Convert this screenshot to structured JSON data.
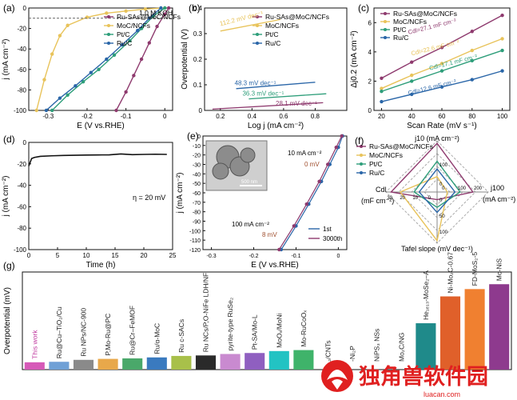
{
  "colors": {
    "ru_sas": "#8e3a6e",
    "moc": "#e8c35a",
    "ptc": "#2e9e7a",
    "ruc": "#2a66a8",
    "axis": "#111111",
    "inset_bg": "#cfcfcf",
    "watermark_red": "#e02020"
  },
  "panels": {
    "a": {
      "tag": "(a)",
      "annot": "1.0 M KOH"
    },
    "b": {
      "tag": "(b)"
    },
    "c": {
      "tag": "(c)"
    },
    "d": {
      "tag": "(d)",
      "annot": "η = 20 mV"
    },
    "e": {
      "tag": "(e)",
      "annot_top": "10 mA cm⁻²",
      "annot_top_val": "0 mV",
      "annot_bot": "100 mA cm⁻²",
      "annot_bot_val": "8 mV",
      "legend1": "1st",
      "legend2": "3000th",
      "scale_bar": "500 nm"
    },
    "f": {
      "tag": "(f)"
    },
    "g": {
      "tag": "(g)"
    }
  },
  "watermark": {
    "text": "独角兽软件园",
    "url": "luacan.com"
  },
  "chart_data": [
    {
      "panel": "a",
      "type": "line",
      "xlabel": "E (V vs.RHE)",
      "ylabel": "j (mA cm⁻²)",
      "xlim": [
        -0.35,
        0.02
      ],
      "ylim": [
        -100,
        0
      ],
      "xticks": [
        -0.3,
        -0.2,
        -0.1,
        0.0
      ],
      "yticks": [
        -100,
        -80,
        -60,
        -40,
        -20,
        0
      ],
      "series": [
        {
          "name": "Ru-SAs@MoC/NCFs",
          "color_key": "ru_sas",
          "x": [
            -0.125,
            -0.1,
            -0.08,
            -0.06,
            -0.04,
            -0.02,
            0.0,
            0.01
          ],
          "y": [
            -100,
            -82,
            -66,
            -50,
            -34,
            -18,
            -6,
            0
          ]
        },
        {
          "name": "MoC/NCFs",
          "color_key": "moc",
          "x": [
            -0.33,
            -0.31,
            -0.29,
            -0.27,
            -0.25,
            -0.2,
            -0.15,
            -0.1,
            -0.05,
            0.0
          ],
          "y": [
            -100,
            -70,
            -45,
            -27,
            -17,
            -9,
            -5,
            -3,
            -1,
            0
          ]
        },
        {
          "name": "Pt/C",
          "color_key": "ptc",
          "x": [
            -0.29,
            -0.25,
            -0.21,
            -0.17,
            -0.13,
            -0.09,
            -0.06,
            -0.03,
            0.0
          ],
          "y": [
            -100,
            -85,
            -72,
            -60,
            -46,
            -32,
            -20,
            -8,
            0
          ]
        },
        {
          "name": "Ru/C",
          "color_key": "ruc",
          "x": [
            -0.305,
            -0.27,
            -0.23,
            -0.19,
            -0.15,
            -0.11,
            -0.07,
            -0.04,
            -0.01
          ],
          "y": [
            -100,
            -88,
            -76,
            -63,
            -50,
            -36,
            -22,
            -10,
            0
          ]
        }
      ]
    },
    {
      "panel": "b",
      "type": "line",
      "xlabel": "Log j (mA cm⁻²)",
      "ylabel": "Overpotential (V)",
      "xlim": [
        0.1,
        1.0
      ],
      "ylim": [
        0.0,
        0.4
      ],
      "xticks": [
        0.2,
        0.4,
        0.6,
        0.8
      ],
      "yticks": [
        0.0,
        0.1,
        0.2,
        0.3,
        0.4
      ],
      "series": [
        {
          "name": "Ru-SAs@MoC/NCFs",
          "color_key": "ru_sas",
          "x": [
            0.15,
            0.85
          ],
          "y": [
            0.005,
            0.03
          ],
          "slope_label": "28.1 mV dec⁻¹"
        },
        {
          "name": "MoC/NCFs",
          "color_key": "moc",
          "x": [
            0.2,
            0.58
          ],
          "y": [
            0.31,
            0.355
          ],
          "slope_label": "112.2 mV dec⁻¹"
        },
        {
          "name": "Pt/C",
          "color_key": "ptc",
          "x": [
            0.38,
            0.87
          ],
          "y": [
            0.045,
            0.065
          ],
          "slope_label": "36.3 mV dec⁻¹"
        },
        {
          "name": "Ru/C",
          "color_key": "ruc",
          "x": [
            0.3,
            0.8
          ],
          "y": [
            0.085,
            0.11
          ],
          "slope_label": "48.3 mV dec⁻¹"
        }
      ]
    },
    {
      "panel": "c",
      "type": "line",
      "xlabel": "Scan Rate (mV s⁻¹)",
      "ylabel": "Δj0.2 (mA cm⁻²)",
      "xlim": [
        15,
        105
      ],
      "ylim": [
        0,
        7
      ],
      "xticks": [
        20,
        40,
        60,
        80,
        100
      ],
      "yticks": [
        0,
        2,
        4,
        6
      ],
      "series": [
        {
          "name": "Ru-SAs@MoC/NCFs",
          "color_key": "ru_sas",
          "x": [
            20,
            40,
            60,
            80,
            100
          ],
          "y": [
            2.2,
            3.3,
            4.3,
            5.4,
            6.5
          ],
          "slope_label": "Cdl=27.1 mF cm⁻²"
        },
        {
          "name": "MoC/NCFs",
          "color_key": "moc",
          "x": [
            20,
            40,
            60,
            80,
            100
          ],
          "y": [
            1.5,
            2.4,
            3.2,
            4.1,
            4.9
          ],
          "slope_label": "Cdl=22.6 mF cm⁻²"
        },
        {
          "name": "Pt/C",
          "color_key": "ptc",
          "x": [
            20,
            40,
            60,
            80,
            100
          ],
          "y": [
            1.3,
            2.0,
            2.7,
            3.4,
            4.1
          ],
          "slope_label": "Cdl=17.1 mF cm⁻²"
        },
        {
          "name": "Ru/C",
          "color_key": "ruc",
          "x": [
            20,
            40,
            60,
            80,
            100
          ],
          "y": [
            0.6,
            1.1,
            1.6,
            2.1,
            2.7
          ],
          "slope_label": "Cdl=12.6 mF cm⁻²"
        }
      ]
    },
    {
      "panel": "d",
      "type": "line",
      "xlabel": "Time (h)",
      "ylabel": "j (mA cm⁻²)",
      "xlim": [
        0,
        25
      ],
      "ylim": [
        -100,
        0
      ],
      "xticks": [
        0,
        5,
        10,
        15,
        20,
        25
      ],
      "yticks": [
        -100,
        -80,
        -60,
        -40,
        -20,
        0
      ],
      "series": [
        {
          "name": "",
          "color_key": "axis",
          "x": [
            0,
            0.5,
            1,
            2,
            4,
            6,
            8,
            10,
            12,
            14,
            16,
            18,
            20,
            22,
            24
          ],
          "y": [
            -22,
            -15,
            -14,
            -13,
            -12.5,
            -12.2,
            -12,
            -11.8,
            -11.7,
            -11.6,
            -10.8,
            -11.4,
            -11.2,
            -11.0,
            -11.2
          ]
        }
      ]
    },
    {
      "panel": "e",
      "type": "line",
      "xlabel": "E (V vs.RHE)",
      "ylabel": "j (mA cm⁻²)",
      "xlim": [
        -0.32,
        0.02
      ],
      "ylim": [
        -120,
        0
      ],
      "xticks": [
        -0.3,
        -0.2,
        -0.1,
        0.0
      ],
      "yticks": [
        -120,
        -110,
        -100,
        -90,
        -80,
        -70,
        -60,
        -50,
        -40,
        -30,
        -20,
        -10,
        0
      ],
      "series": [
        {
          "name": "1st",
          "color_key": "ruc",
          "x": [
            -0.135,
            -0.1,
            -0.07,
            -0.04,
            -0.02,
            0.0,
            0.01
          ],
          "y": [
            -120,
            -95,
            -72,
            -48,
            -30,
            -12,
            0
          ]
        },
        {
          "name": "3000th",
          "color_key": "ru_sas",
          "x": [
            -0.14,
            -0.105,
            -0.075,
            -0.045,
            -0.025,
            -0.005,
            0.008
          ],
          "y": [
            -120,
            -95,
            -72,
            -48,
            -30,
            -12,
            0
          ]
        }
      ]
    },
    {
      "panel": "f",
      "type": "radar",
      "axes": [
        "j10 (mA cm⁻²)",
        "j100 (mA cm⁻²)",
        "Tafel slope (mV dec⁻¹)",
        "Cdl (mF cm⁻²)"
      ],
      "axis_ticks": {
        "j10": [
          "0",
          "100"
        ],
        "j100": [
          "0",
          "100",
          "200"
        ],
        "tafel": [
          "0",
          "50",
          "100"
        ],
        "cdl": [
          "0",
          "10",
          "20",
          "30"
        ]
      },
      "series": [
        {
          "name": "Ru-SAs@MoC/NCFs",
          "color_key": "ru_sas"
        },
        {
          "name": "MoC/NCFs",
          "color_key": "moc"
        },
        {
          "name": "Pt/C",
          "color_key": "ptc"
        },
        {
          "name": "Ru/C",
          "color_key": "ruc"
        }
      ]
    },
    {
      "panel": "g",
      "type": "bar",
      "ylabel": "Overpotential (mV)",
      "categories": [
        "This work",
        "Ru@Cu–TiO₂/Cu",
        "Ru NPs/NC-900",
        "P,Mo-Ru@PC",
        "Ru@Cr–FeMOF",
        "Ru/α-MoC",
        "Ru c-SACs",
        "Ru NCs/P,O-NiFe LDH/NF",
        "pyrite-type RuSe₂",
        "Pt-SA/Mo-L",
        "MoOₓ/MoNi",
        "Mo-RuCoOₓ",
        "₂/CNTs",
        "-Ni₂P",
        "NiPS₃ NSs",
        "Mo₂C/NG",
        "He₁ₑ₁₃-MoSe₂–A",
        "Ni-Mo₂C-0.67",
        "FD-MoS₂-5",
        "Mo-NiS"
      ],
      "values": [
        15,
        16,
        20,
        22,
        23,
        25,
        28,
        29,
        32,
        34,
        38,
        40,
        0,
        0,
        0,
        0,
        95,
        150,
        165,
        175
      ],
      "bar_colors": [
        "#d65ab8",
        "#6fa0d6",
        "#8a8a8a",
        "#e8a84a",
        "#4aa86a",
        "#3a7abf",
        "#a8c04a",
        "#2a2a2a",
        "#c98ad0",
        "#8f5fc0",
        "#22c3c3",
        "#3fb36a",
        "#bbbbbb",
        "#bbbbbb",
        "#bbbbbb",
        "#bbbbbb",
        "#1f8a8a",
        "#e0602a",
        "#f08030",
        "#8e3a8e"
      ]
    }
  ]
}
